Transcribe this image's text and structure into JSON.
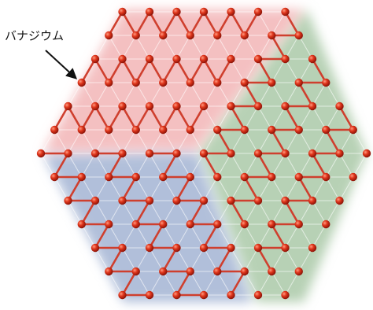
{
  "label": "バナジウム"
}
